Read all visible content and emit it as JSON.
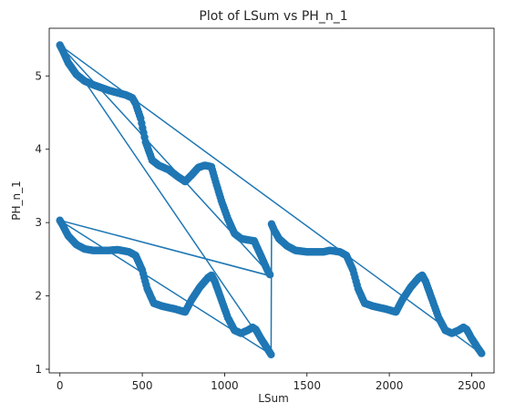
{
  "chart_data": {
    "type": "line",
    "title": "Plot of LSum vs PH_n_1",
    "xlabel": "LSum",
    "ylabel": "PH_n_1",
    "xlim": [
      -65,
      2636
    ],
    "ylim": [
      0.95,
      5.65
    ],
    "xticks": [
      0,
      500,
      1000,
      1500,
      2000,
      2500
    ],
    "yticks": [
      1,
      2,
      3,
      4,
      5
    ],
    "grid": false,
    "markers": true,
    "color": "#1f77b4",
    "series": [
      {
        "values_note": "",
        "points": [
          [
            0,
            5.42
          ],
          [
            20,
            5.33
          ],
          [
            50,
            5.18
          ],
          [
            100,
            5.02
          ],
          [
            150,
            4.93
          ],
          [
            200,
            4.88
          ],
          [
            300,
            4.8
          ],
          [
            400,
            4.74
          ],
          [
            440,
            4.7
          ],
          [
            460,
            4.62
          ],
          [
            490,
            4.42
          ],
          [
            520,
            4.1
          ],
          [
            560,
            3.85
          ],
          [
            600,
            3.78
          ],
          [
            660,
            3.72
          ],
          [
            720,
            3.62
          ],
          [
            760,
            3.56
          ],
          [
            800,
            3.65
          ],
          [
            840,
            3.75
          ],
          [
            880,
            3.78
          ],
          [
            920,
            3.76
          ],
          [
            940,
            3.6
          ],
          [
            980,
            3.3
          ],
          [
            1020,
            3.05
          ],
          [
            1060,
            2.85
          ],
          [
            1100,
            2.78
          ],
          [
            1150,
            2.76
          ],
          [
            1180,
            2.75
          ],
          [
            1200,
            2.65
          ],
          [
            1230,
            2.5
          ],
          [
            1260,
            2.35
          ],
          [
            1280,
            2.27
          ],
          [
            0,
            3.03
          ],
          [
            20,
            2.95
          ],
          [
            50,
            2.82
          ],
          [
            100,
            2.7
          ],
          [
            150,
            2.64
          ],
          [
            200,
            2.62
          ],
          [
            300,
            2.62
          ],
          [
            350,
            2.63
          ],
          [
            420,
            2.6
          ],
          [
            460,
            2.55
          ],
          [
            500,
            2.35
          ],
          [
            530,
            2.1
          ],
          [
            570,
            1.9
          ],
          [
            620,
            1.86
          ],
          [
            700,
            1.82
          ],
          [
            760,
            1.78
          ],
          [
            800,
            1.95
          ],
          [
            850,
            2.12
          ],
          [
            900,
            2.25
          ],
          [
            920,
            2.28
          ],
          [
            940,
            2.2
          ],
          [
            980,
            1.95
          ],
          [
            1020,
            1.7
          ],
          [
            1060,
            1.53
          ],
          [
            1100,
            1.49
          ],
          [
            1140,
            1.53
          ],
          [
            1170,
            1.57
          ],
          [
            1190,
            1.54
          ],
          [
            1220,
            1.42
          ],
          [
            1260,
            1.28
          ],
          [
            1282,
            1.2
          ],
          [
            1285,
            2.98
          ],
          [
            1300,
            2.9
          ],
          [
            1330,
            2.78
          ],
          [
            1380,
            2.68
          ],
          [
            1430,
            2.62
          ],
          [
            1500,
            2.6
          ],
          [
            1600,
            2.6
          ],
          [
            1640,
            2.62
          ],
          [
            1700,
            2.6
          ],
          [
            1740,
            2.55
          ],
          [
            1780,
            2.35
          ],
          [
            1810,
            2.1
          ],
          [
            1850,
            1.9
          ],
          [
            1900,
            1.86
          ],
          [
            1980,
            1.82
          ],
          [
            2040,
            1.78
          ],
          [
            2080,
            1.95
          ],
          [
            2130,
            2.12
          ],
          [
            2180,
            2.25
          ],
          [
            2200,
            2.28
          ],
          [
            2220,
            2.2
          ],
          [
            2260,
            1.95
          ],
          [
            2300,
            1.7
          ],
          [
            2340,
            1.53
          ],
          [
            2380,
            1.49
          ],
          [
            2420,
            1.53
          ],
          [
            2450,
            1.57
          ],
          [
            2470,
            1.54
          ],
          [
            2500,
            1.42
          ],
          [
            2540,
            1.28
          ],
          [
            2565,
            1.2
          ],
          [
            0,
            5.42
          ],
          [
            1285,
            2.27
          ],
          [
            0,
            3.03
          ],
          [
            1282,
            1.2
          ],
          [
            0,
            5.42
          ],
          [
            2565,
            1.2
          ]
        ]
      }
    ]
  }
}
